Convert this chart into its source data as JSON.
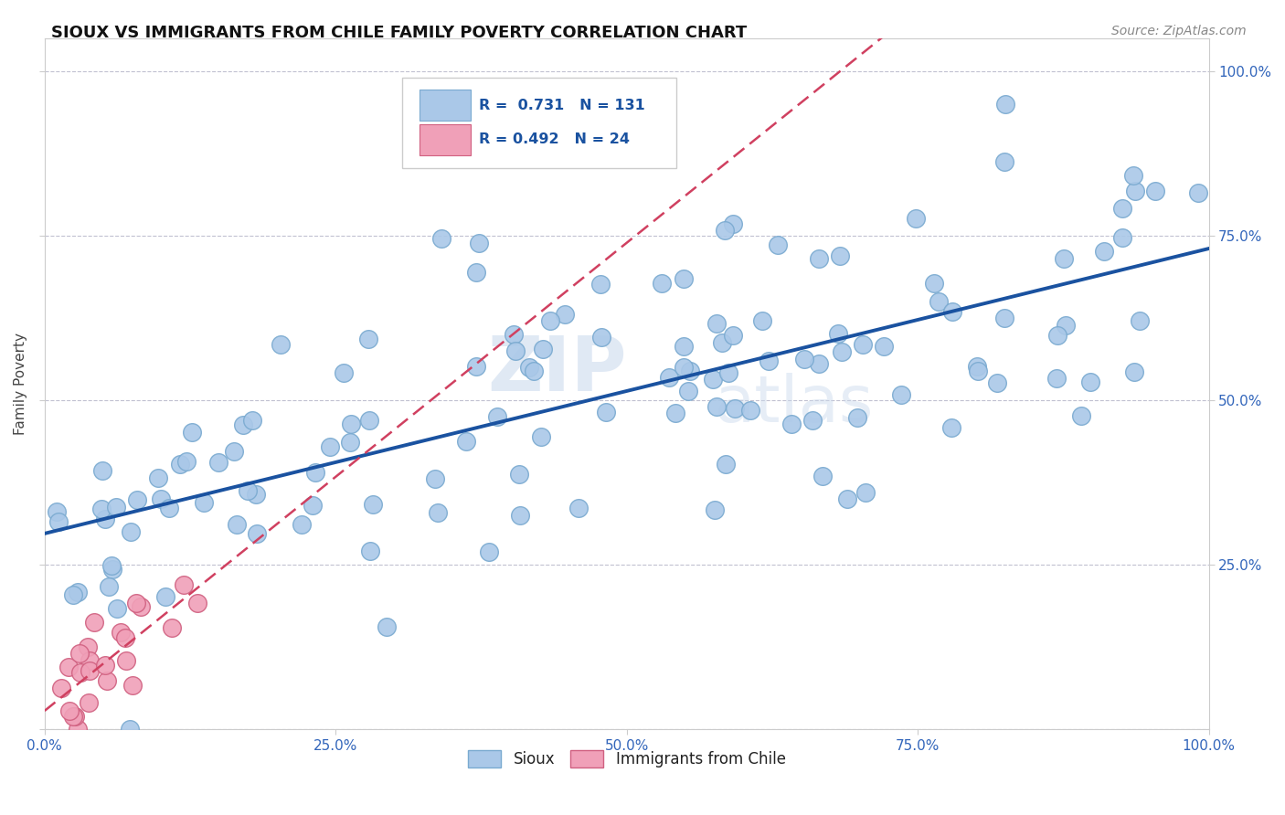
{
  "title": "SIOUX VS IMMIGRANTS FROM CHILE FAMILY POVERTY CORRELATION CHART",
  "source": "Source: ZipAtlas.com",
  "ylabel": "Family Poverty",
  "watermark_zip": "ZIP",
  "watermark_atlas": "atlas",
  "sioux_color": "#aac8e8",
  "sioux_edge": "#7aaad0",
  "chile_color": "#f0a0b8",
  "chile_edge": "#d06080",
  "line_sioux_color": "#1a52a0",
  "line_chile_color": "#d04060",
  "legend_box_color": "#aac8e8",
  "legend_box_chile": "#f0a0b8",
  "tick_color": "#3366bb",
  "title_color": "#111111",
  "grid_color": "#bbbbcc",
  "background": "#ffffff"
}
